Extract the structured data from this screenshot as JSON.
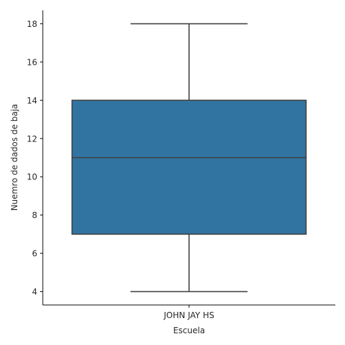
{
  "chart_data": {
    "type": "box",
    "categories": [
      "JOHN JAY HS"
    ],
    "series": [
      {
        "min": 4,
        "q1": 7,
        "median": 11,
        "q3": 14,
        "max": 18
      }
    ],
    "xlabel": "Escuela",
    "ylabel": "Nuemro de dados de baja",
    "ylim": [
      3.3,
      18.7
    ],
    "yticks": [
      4,
      6,
      8,
      10,
      12,
      14,
      16,
      18
    ],
    "grid": false,
    "box_color": "#3274a1",
    "line_color": "#3f3f3f"
  }
}
